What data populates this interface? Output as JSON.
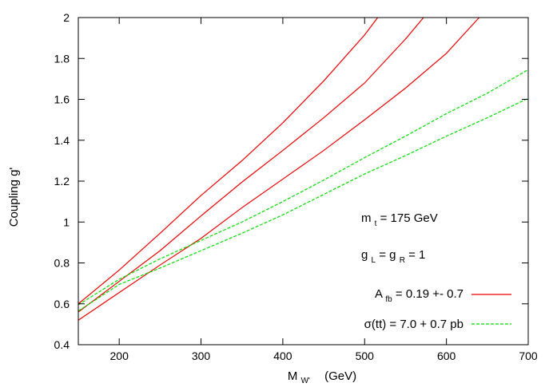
{
  "chart_data": {
    "type": "line",
    "title": "",
    "xlabel": {
      "main": "M",
      "sub": "W'",
      "unit": "(GeV)"
    },
    "ylabel": "Coupling g'",
    "xlim": [
      150,
      700
    ],
    "ylim": [
      0.4,
      2.0
    ],
    "xticks": [
      200,
      300,
      400,
      500,
      600,
      700
    ],
    "yticks": [
      0.4,
      0.6,
      0.8,
      1,
      1.2,
      1.4,
      1.6,
      1.8,
      2
    ],
    "ytick_labels": [
      "0.4",
      "0.6",
      "0.8",
      "1",
      "1.2",
      "1.4",
      "1.6",
      "1.8",
      "2"
    ],
    "grid": false,
    "legend_position": "bottom-right",
    "annotations": [
      {
        "main": "m",
        "sub": "t",
        "rest": " = 175 GeV"
      },
      {
        "parts": [
          {
            "main": "g",
            "sub": "L"
          },
          {
            "main": " = g",
            "sub": "R"
          }
        ],
        "rest": " = 1"
      }
    ],
    "legend": [
      {
        "main": "A",
        "sub": "fb",
        "rest": " = 0.19 +- 0.7",
        "color": "#ee0000",
        "dash": "solid"
      },
      {
        "text": "σ(tt) = 7.0 + 0.7 pb",
        "color": "#00dd00",
        "dash": "dashed"
      }
    ],
    "series": [
      {
        "group": "A_fb",
        "color": "#ee0000",
        "dash": "solid",
        "x": [
          150,
          200,
          250,
          300,
          350,
          400,
          450,
          500,
          516
        ],
        "y": [
          0.6,
          0.765,
          0.945,
          1.13,
          1.3,
          1.485,
          1.69,
          1.915,
          2.0
        ]
      },
      {
        "group": "A_fb",
        "color": "#ee0000",
        "dash": "solid",
        "x": [
          150,
          200,
          250,
          300,
          350,
          400,
          450,
          500,
          550,
          572
        ],
        "y": [
          0.56,
          0.71,
          0.86,
          1.03,
          1.195,
          1.35,
          1.51,
          1.68,
          1.895,
          2.0
        ]
      },
      {
        "group": "A_fb",
        "color": "#ee0000",
        "dash": "solid",
        "x": [
          150,
          200,
          250,
          300,
          350,
          400,
          450,
          500,
          550,
          600,
          640
        ],
        "y": [
          0.52,
          0.655,
          0.79,
          0.92,
          1.07,
          1.21,
          1.35,
          1.5,
          1.655,
          1.825,
          2.0
        ]
      },
      {
        "group": "sigma_tt",
        "color": "#00dd00",
        "dash": "dashed",
        "x": [
          150,
          200,
          250,
          300,
          350,
          400,
          450,
          500,
          550,
          600,
          650,
          700
        ],
        "y": [
          0.595,
          0.72,
          0.82,
          0.91,
          1.0,
          1.1,
          1.205,
          1.315,
          1.42,
          1.53,
          1.63,
          1.745
        ]
      },
      {
        "group": "sigma_tt",
        "color": "#00dd00",
        "dash": "dashed",
        "x": [
          150,
          200,
          250,
          300,
          350,
          400,
          450,
          500,
          550,
          600,
          650,
          700
        ],
        "y": [
          0.565,
          0.695,
          0.775,
          0.86,
          0.945,
          1.035,
          1.135,
          1.235,
          1.325,
          1.42,
          1.51,
          1.605
        ]
      }
    ]
  }
}
